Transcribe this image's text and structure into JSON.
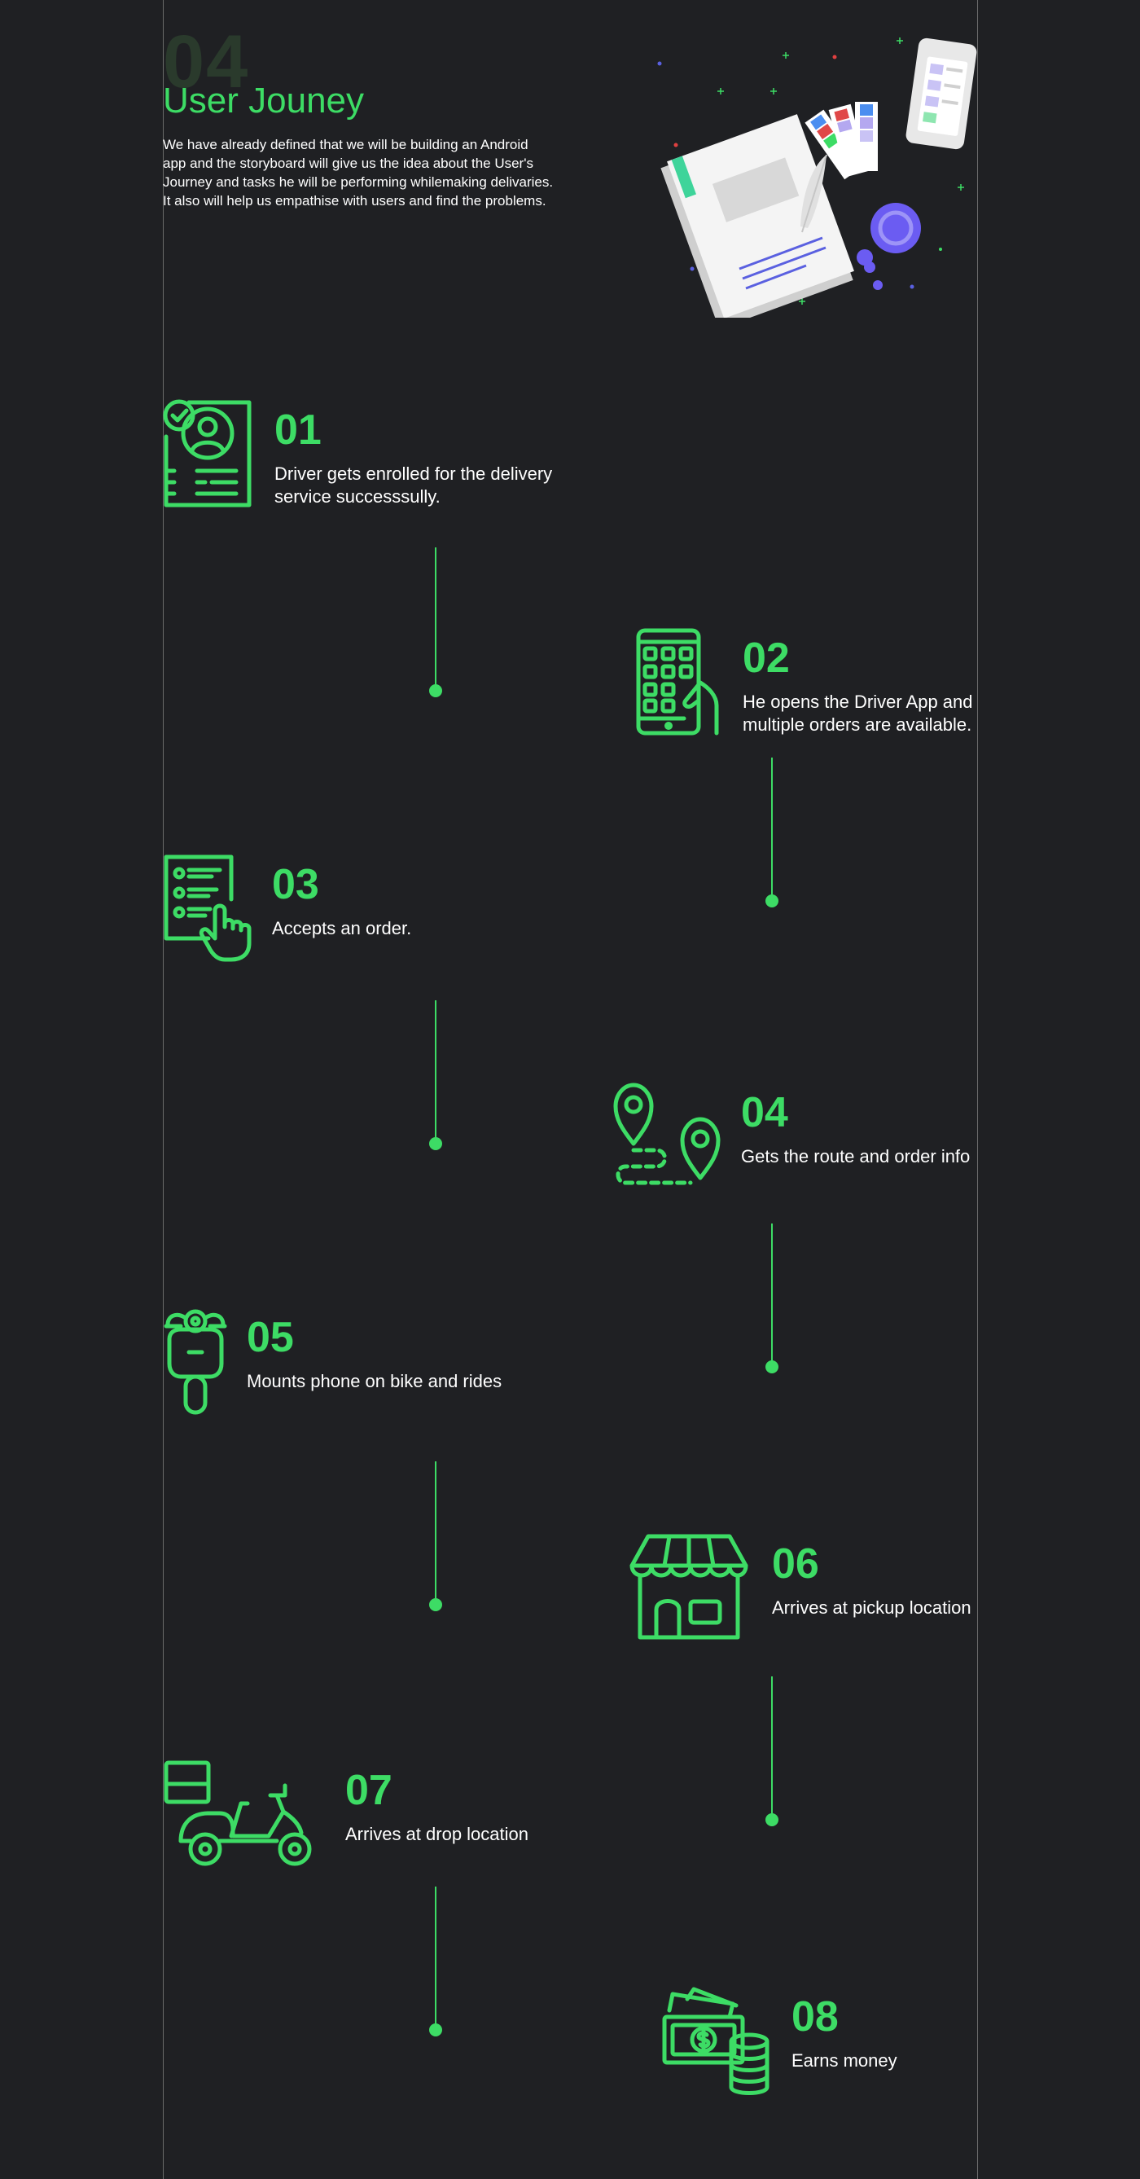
{
  "hero": {
    "number": "04",
    "title": "User Jouney",
    "description": "We have already defined that we will be building an Android app and the storyboard will give us the idea about the User's Journey and tasks he will be performing whilemaking delivaries. It also will help us empathise with users and find the problems."
  },
  "colors": {
    "accent": "#3ddc65",
    "background": "#1f2023",
    "text": "#ffffff",
    "guide": "#6a6a6a"
  },
  "steps": [
    {
      "number": "01",
      "line1": "Driver gets enrolled for the delivery",
      "line2": "service successsully.",
      "icon": "enrolled-profile-icon"
    },
    {
      "number": "02",
      "line1": "He opens the Driver App and",
      "line2": "multiple orders are available.",
      "icon": "phone-app-icon"
    },
    {
      "number": "03",
      "line1": "Accepts an order.",
      "line2": "",
      "icon": "checklist-tap-icon"
    },
    {
      "number": "04",
      "line1": "Gets the route and order info",
      "line2": "",
      "icon": "route-pins-icon"
    },
    {
      "number": "05",
      "line1": "Mounts phone on bike and rides",
      "line2": "",
      "icon": "scooter-front-icon"
    },
    {
      "number": "06",
      "line1": "Arrives at pickup location",
      "line2": "",
      "icon": "store-icon"
    },
    {
      "number": "07",
      "line1": "Arrives at drop location",
      "line2": "",
      "icon": "delivery-scooter-icon"
    },
    {
      "number": "08",
      "line1": "Earns money",
      "line2": "",
      "icon": "money-icon"
    }
  ]
}
